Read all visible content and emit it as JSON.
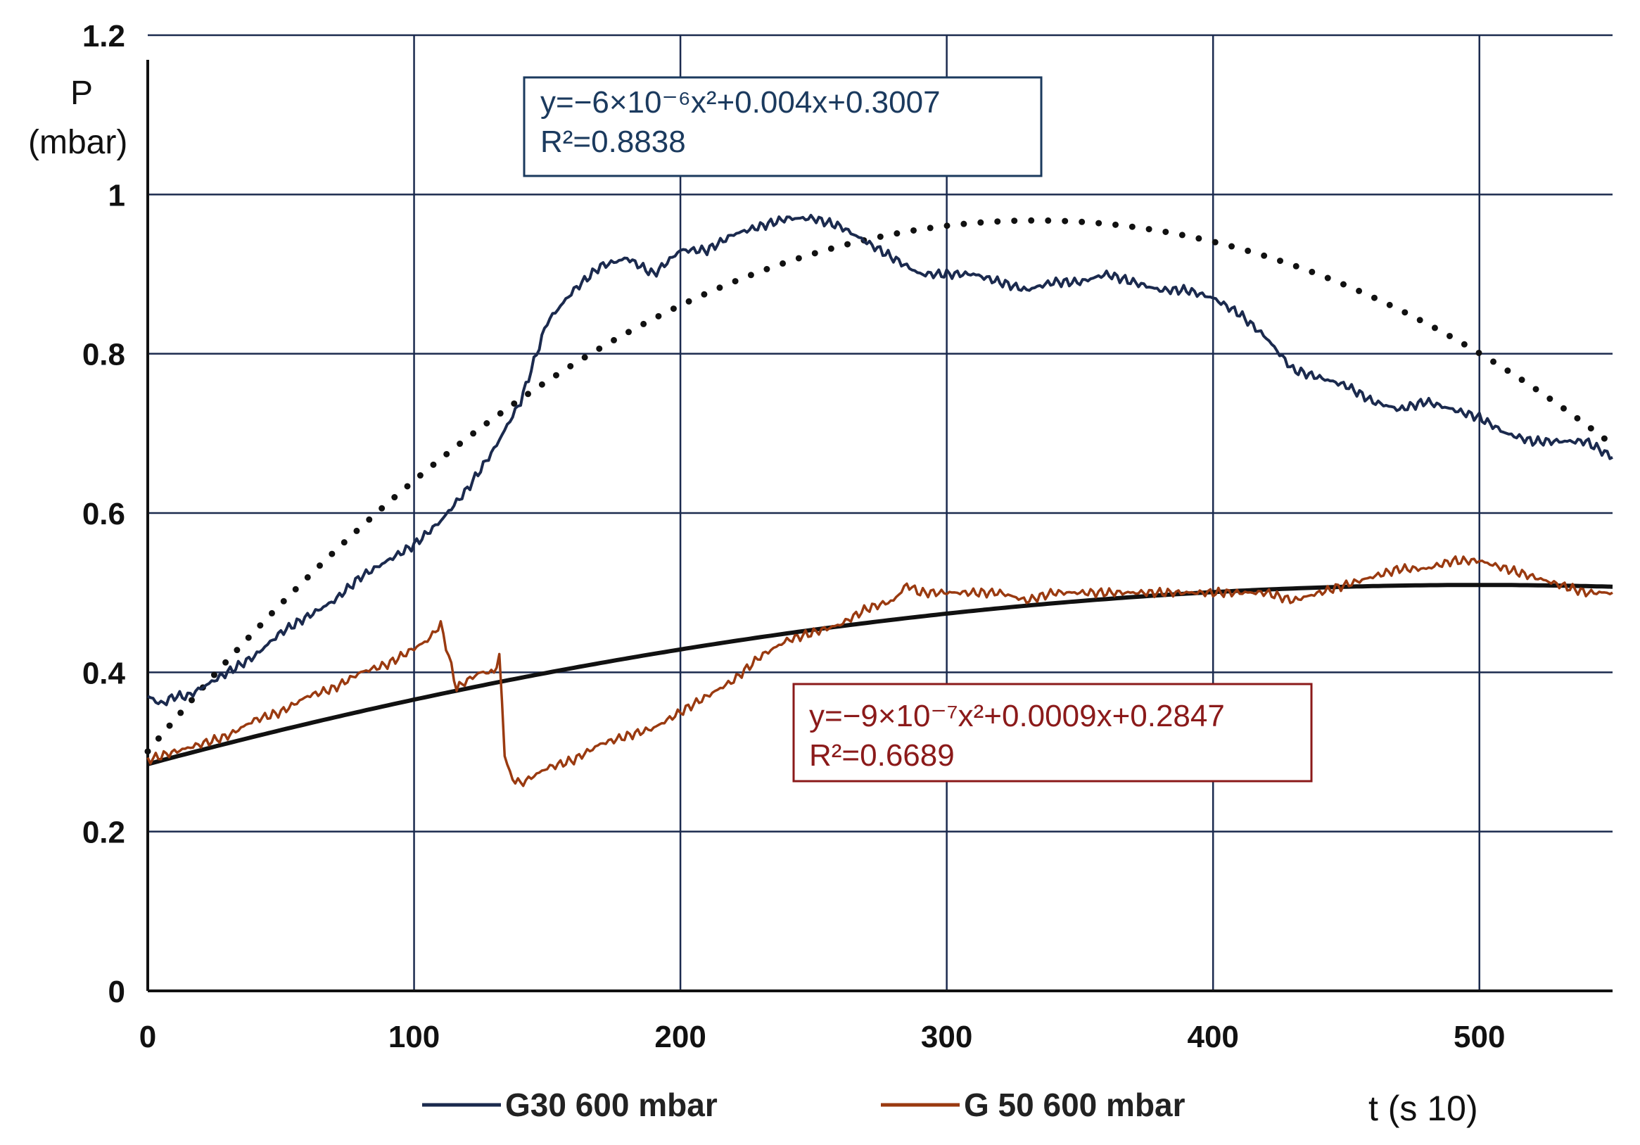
{
  "chart_data": {
    "type": "line",
    "xlabel": "t (s 10)",
    "ylabel_line1": "P",
    "ylabel_line2": "(mbar)",
    "xlim": [
      0,
      550
    ],
    "ylim": [
      0,
      1.2
    ],
    "x_ticks": [
      0,
      100,
      200,
      300,
      400,
      500
    ],
    "x_tick_labels": [
      "0",
      "100",
      "200",
      "300",
      "400",
      "500"
    ],
    "y_ticks": [
      0,
      0.2,
      0.4,
      0.6,
      0.8,
      1,
      1.2
    ],
    "y_tick_labels": [
      "0",
      "0.2",
      "0.4",
      "0.6",
      "0.8",
      "1",
      "1.2"
    ],
    "grid": true,
    "series": [
      {
        "name": "G30 600 mbar",
        "color": "#1b2a4e",
        "x": [
          0,
          5,
          10,
          15,
          20,
          30,
          40,
          50,
          60,
          70,
          80,
          90,
          100,
          110,
          120,
          130,
          140,
          145,
          150,
          160,
          170,
          180,
          190,
          200,
          210,
          220,
          230,
          240,
          250,
          260,
          270,
          280,
          290,
          300,
          310,
          320,
          330,
          340,
          350,
          360,
          370,
          380,
          390,
          400,
          410,
          420,
          430,
          440,
          450,
          460,
          470,
          480,
          490,
          500,
          510,
          520,
          530,
          540,
          550
        ],
        "values": [
          0.37,
          0.36,
          0.37,
          0.37,
          0.38,
          0.4,
          0.42,
          0.45,
          0.47,
          0.49,
          0.52,
          0.54,
          0.56,
          0.59,
          0.63,
          0.68,
          0.74,
          0.79,
          0.84,
          0.88,
          0.91,
          0.92,
          0.9,
          0.93,
          0.93,
          0.95,
          0.96,
          0.97,
          0.97,
          0.96,
          0.94,
          0.92,
          0.9,
          0.9,
          0.9,
          0.89,
          0.88,
          0.89,
          0.89,
          0.9,
          0.89,
          0.88,
          0.88,
          0.87,
          0.85,
          0.82,
          0.78,
          0.77,
          0.76,
          0.74,
          0.73,
          0.74,
          0.73,
          0.72,
          0.7,
          0.69,
          0.69,
          0.69,
          0.67
        ]
      },
      {
        "name": "G 50 600 mbar",
        "color": "#9a3a10",
        "x": [
          0,
          10,
          20,
          30,
          40,
          50,
          60,
          70,
          80,
          90,
          100,
          105,
          110,
          113,
          116,
          120,
          125,
          130,
          132,
          134,
          136,
          140,
          145,
          150,
          160,
          170,
          180,
          190,
          200,
          210,
          220,
          230,
          240,
          250,
          260,
          270,
          280,
          285,
          290,
          300,
          310,
          320,
          330,
          340,
          350,
          360,
          370,
          380,
          390,
          400,
          410,
          420,
          430,
          440,
          450,
          460,
          470,
          480,
          490,
          500,
          510,
          520,
          530,
          540,
          550
        ],
        "values": [
          0.29,
          0.3,
          0.31,
          0.32,
          0.34,
          0.35,
          0.37,
          0.38,
          0.4,
          0.41,
          0.43,
          0.44,
          0.46,
          0.42,
          0.38,
          0.39,
          0.4,
          0.4,
          0.42,
          0.3,
          0.27,
          0.26,
          0.27,
          0.28,
          0.29,
          0.31,
          0.32,
          0.33,
          0.35,
          0.37,
          0.39,
          0.42,
          0.44,
          0.45,
          0.46,
          0.48,
          0.49,
          0.51,
          0.5,
          0.5,
          0.5,
          0.5,
          0.49,
          0.5,
          0.5,
          0.5,
          0.5,
          0.5,
          0.5,
          0.5,
          0.5,
          0.5,
          0.49,
          0.5,
          0.51,
          0.52,
          0.53,
          0.53,
          0.54,
          0.54,
          0.53,
          0.52,
          0.51,
          0.5,
          0.5
        ]
      }
    ],
    "trendlines": [
      {
        "series": "G30 600 mbar",
        "style": "dotted",
        "color": "#111111",
        "a": -6e-06,
        "b": 0.004,
        "c": 0.3007,
        "equation": "y=−6×10⁻⁶x²+0.004x+0.3007",
        "r2": "R²=0.8838",
        "box_color": "#1b3a5e"
      },
      {
        "series": "G 50 600 mbar",
        "style": "solid",
        "color": "#111111",
        "a": -9e-07,
        "b": 0.0009,
        "c": 0.2847,
        "equation": "y=−9×10⁻⁷x²+0.0009x+0.2847",
        "r2": "R²=0.6689",
        "box_color": "#8b1a1a"
      }
    ],
    "legend": [
      "G30 600 mbar",
      "G 50 600 mbar"
    ]
  }
}
